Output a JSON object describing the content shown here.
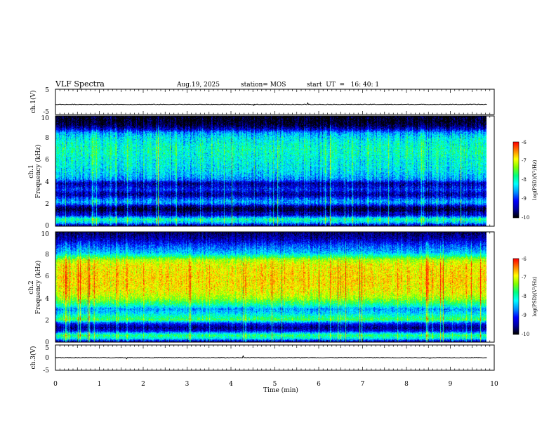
{
  "header": {
    "title": "VLF Spectra",
    "date": "Aug.19, 2025",
    "station": "station= MOS",
    "start_ut": "start  UT  =   16: 40: 1"
  },
  "chart_data": [
    {
      "type": "line",
      "panel": "ch1-voltage",
      "ylabel": "ch.1(V)",
      "ylim": [
        -5,
        5
      ],
      "yticks": [
        "5",
        "-5"
      ],
      "xlim": [
        0,
        10
      ],
      "x_extent_data": 9.83,
      "baseline_value": -1.0,
      "color": "#000000"
    },
    {
      "type": "heatmap",
      "panel": "ch1-spectrogram",
      "ylabel": "ch.1  Frequency (kHz)",
      "ylabel_line1": "ch.1",
      "ylabel_line2": "Frequency (kHz)",
      "ylim": [
        0,
        10
      ],
      "yticks": [
        "0",
        "2",
        "4",
        "6",
        "8",
        "10"
      ],
      "xlim": [
        0,
        10
      ],
      "x_extent_data": 9.83,
      "profile_khz": [
        0,
        0.3,
        0.6,
        0.8,
        1.0,
        1.2,
        1.4,
        1.6,
        1.8,
        2.0,
        2.2,
        2.5,
        2.8,
        3.0,
        3.3,
        3.6,
        3.9,
        4.2,
        4.5,
        5.0,
        5.5,
        6.0,
        6.5,
        7.0,
        7.5,
        8.0,
        8.5,
        8.8,
        9.1,
        9.4,
        9.7,
        10.0
      ],
      "profile_log_psd": [
        -9.6,
        -8.4,
        -7.9,
        -8.6,
        -9.4,
        -9.4,
        -9.85,
        -9.85,
        -9.5,
        -8.8,
        -8.5,
        -8.9,
        -9.5,
        -9.45,
        -9.0,
        -9.3,
        -9.5,
        -8.7,
        -8.5,
        -8.3,
        -8.2,
        -8.15,
        -8.05,
        -8.0,
        -8.1,
        -8.25,
        -8.6,
        -9.3,
        -9.75,
        -9.95,
        -10.0,
        -10.0
      ],
      "colorbar": {
        "label": "log(PSD)(V²/Hz)",
        "range": [
          -10,
          -6
        ],
        "ticks": [
          "-6",
          "-7",
          "-8",
          "-9",
          "-10"
        ]
      }
    },
    {
      "type": "heatmap",
      "panel": "ch2-spectrogram",
      "ylabel": "ch.2  Frequency (kHz)",
      "ylabel_line1": "ch.2",
      "ylabel_line2": "Frequency (kHz)",
      "ylim": [
        0,
        10
      ],
      "yticks": [
        "0",
        "2",
        "4",
        "6",
        "8",
        "10"
      ],
      "xlim": [
        0,
        10
      ],
      "x_extent_data": 9.83,
      "profile_khz": [
        0,
        0.3,
        0.6,
        0.8,
        1.0,
        1.3,
        1.6,
        1.8,
        2.0,
        2.3,
        2.6,
        3.0,
        3.3,
        3.6,
        4.0,
        4.5,
        5.0,
        5.5,
        6.0,
        6.5,
        7.0,
        7.5,
        7.8,
        8.1,
        8.5,
        8.8,
        9.1,
        9.5,
        10.0
      ],
      "profile_log_psd": [
        -9.5,
        -8.2,
        -7.7,
        -8.4,
        -9.2,
        -9.6,
        -9.2,
        -8.6,
        -7.6,
        -7.9,
        -8.3,
        -8.6,
        -8.0,
        -7.6,
        -7.2,
        -6.95,
        -6.85,
        -6.8,
        -6.8,
        -6.85,
        -6.9,
        -7.2,
        -7.8,
        -8.4,
        -8.7,
        -8.9,
        -9.2,
        -9.5,
        -9.7
      ],
      "colorbar": {
        "label": "log(PSD)(V²/Hz)",
        "range": [
          -10,
          -6
        ],
        "ticks": [
          "-6",
          "-7",
          "-8",
          "-9",
          "-10"
        ]
      }
    },
    {
      "type": "line",
      "panel": "ch3-voltage",
      "ylabel": "ch.3(V)",
      "ylim": [
        -5,
        5
      ],
      "yticks": [
        "5",
        "0",
        "-5"
      ],
      "xlim": [
        0,
        10
      ],
      "x_extent_data": 9.83,
      "baseline_value": 0.0,
      "color": "#000000"
    }
  ],
  "xaxis": {
    "label": "Time (min)",
    "ticks": [
      "0",
      "1",
      "2",
      "3",
      "4",
      "5",
      "6",
      "7",
      "8",
      "9",
      "10"
    ]
  },
  "colormap": [
    "#000000",
    "#0000a0",
    "#0000ff",
    "#0090ff",
    "#00ffff",
    "#00ff80",
    "#80ff00",
    "#ffff00",
    "#ff8000",
    "#ff0000",
    "#ffffff"
  ]
}
